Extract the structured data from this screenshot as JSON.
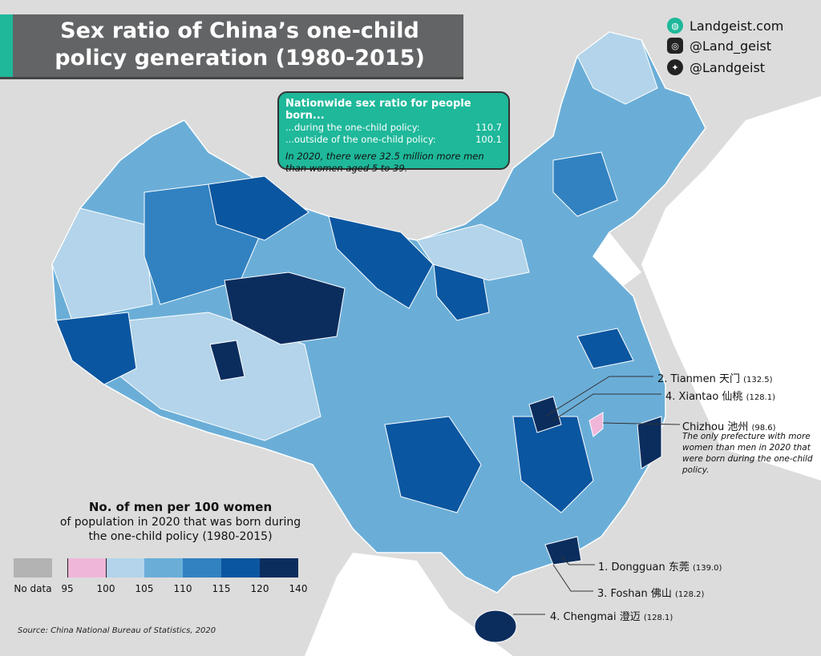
{
  "title": "Sex ratio of China’s one-child policy generation (1980-2015)",
  "social": [
    {
      "icon": "globe-icon",
      "label": "Landgeist.com"
    },
    {
      "icon": "instagram-icon",
      "label": "@Land_geist"
    },
    {
      "icon": "twitter-icon",
      "label": "@Landgeist"
    }
  ],
  "info_box": {
    "heading": "Nationwide sex ratio for people born...",
    "rows": [
      {
        "label": "...during the one-child policy:",
        "value": "110.7"
      },
      {
        "label": "...outside of the one-child policy:",
        "value": "100.1"
      }
    ],
    "note": "In 2020, there were 32.5 million more men than women aged 5 to 39."
  },
  "legend": {
    "title": "No. of men per 100 women",
    "subtitle": "of population in 2020 that was born during the one-child policy (1980-2015)",
    "no_data_label": "No data",
    "ticks": [
      "95",
      "100",
      "105",
      "110",
      "115",
      "120",
      "140"
    ],
    "bins": [
      {
        "range": "95-100",
        "color": "#f0b6d9"
      },
      {
        "range": "100-105",
        "color": "#b3d4ea"
      },
      {
        "range": "105-110",
        "color": "#6aaed8"
      },
      {
        "range": "110-115",
        "color": "#3282c1"
      },
      {
        "range": "115-120",
        "color": "#0b56a0"
      },
      {
        "range": "120-140",
        "color": "#0b2d5e"
      }
    ],
    "no_data_color": "#b3b3b3"
  },
  "annotations": [
    {
      "rank": "2.",
      "name": "Tianmen 天门",
      "value": "(132.5)"
    },
    {
      "rank": "4.",
      "name": "Xiantao 仙桃",
      "value": "(128.1)"
    },
    {
      "rank": "",
      "name": "Chizhou 池州",
      "value": "(98.6)"
    },
    {
      "rank": "1.",
      "name": "Dongguan 东莞",
      "value": "(139.0)"
    },
    {
      "rank": "3.",
      "name": "Foshan 佛山",
      "value": "(128.2)"
    },
    {
      "rank": "4.",
      "name": "Chengmai 澄迈",
      "value": "(128.1)"
    }
  ],
  "chizhou_note": "The only prefecture with more women than men in 2020 that were born during the one-child policy.",
  "source": "Source: China National Bureau of Statistics, 2020",
  "colors": {
    "accent": "#1fb89a",
    "title_bg": "#636466",
    "background": "#dcdcdc",
    "sea": "#ffffff"
  }
}
